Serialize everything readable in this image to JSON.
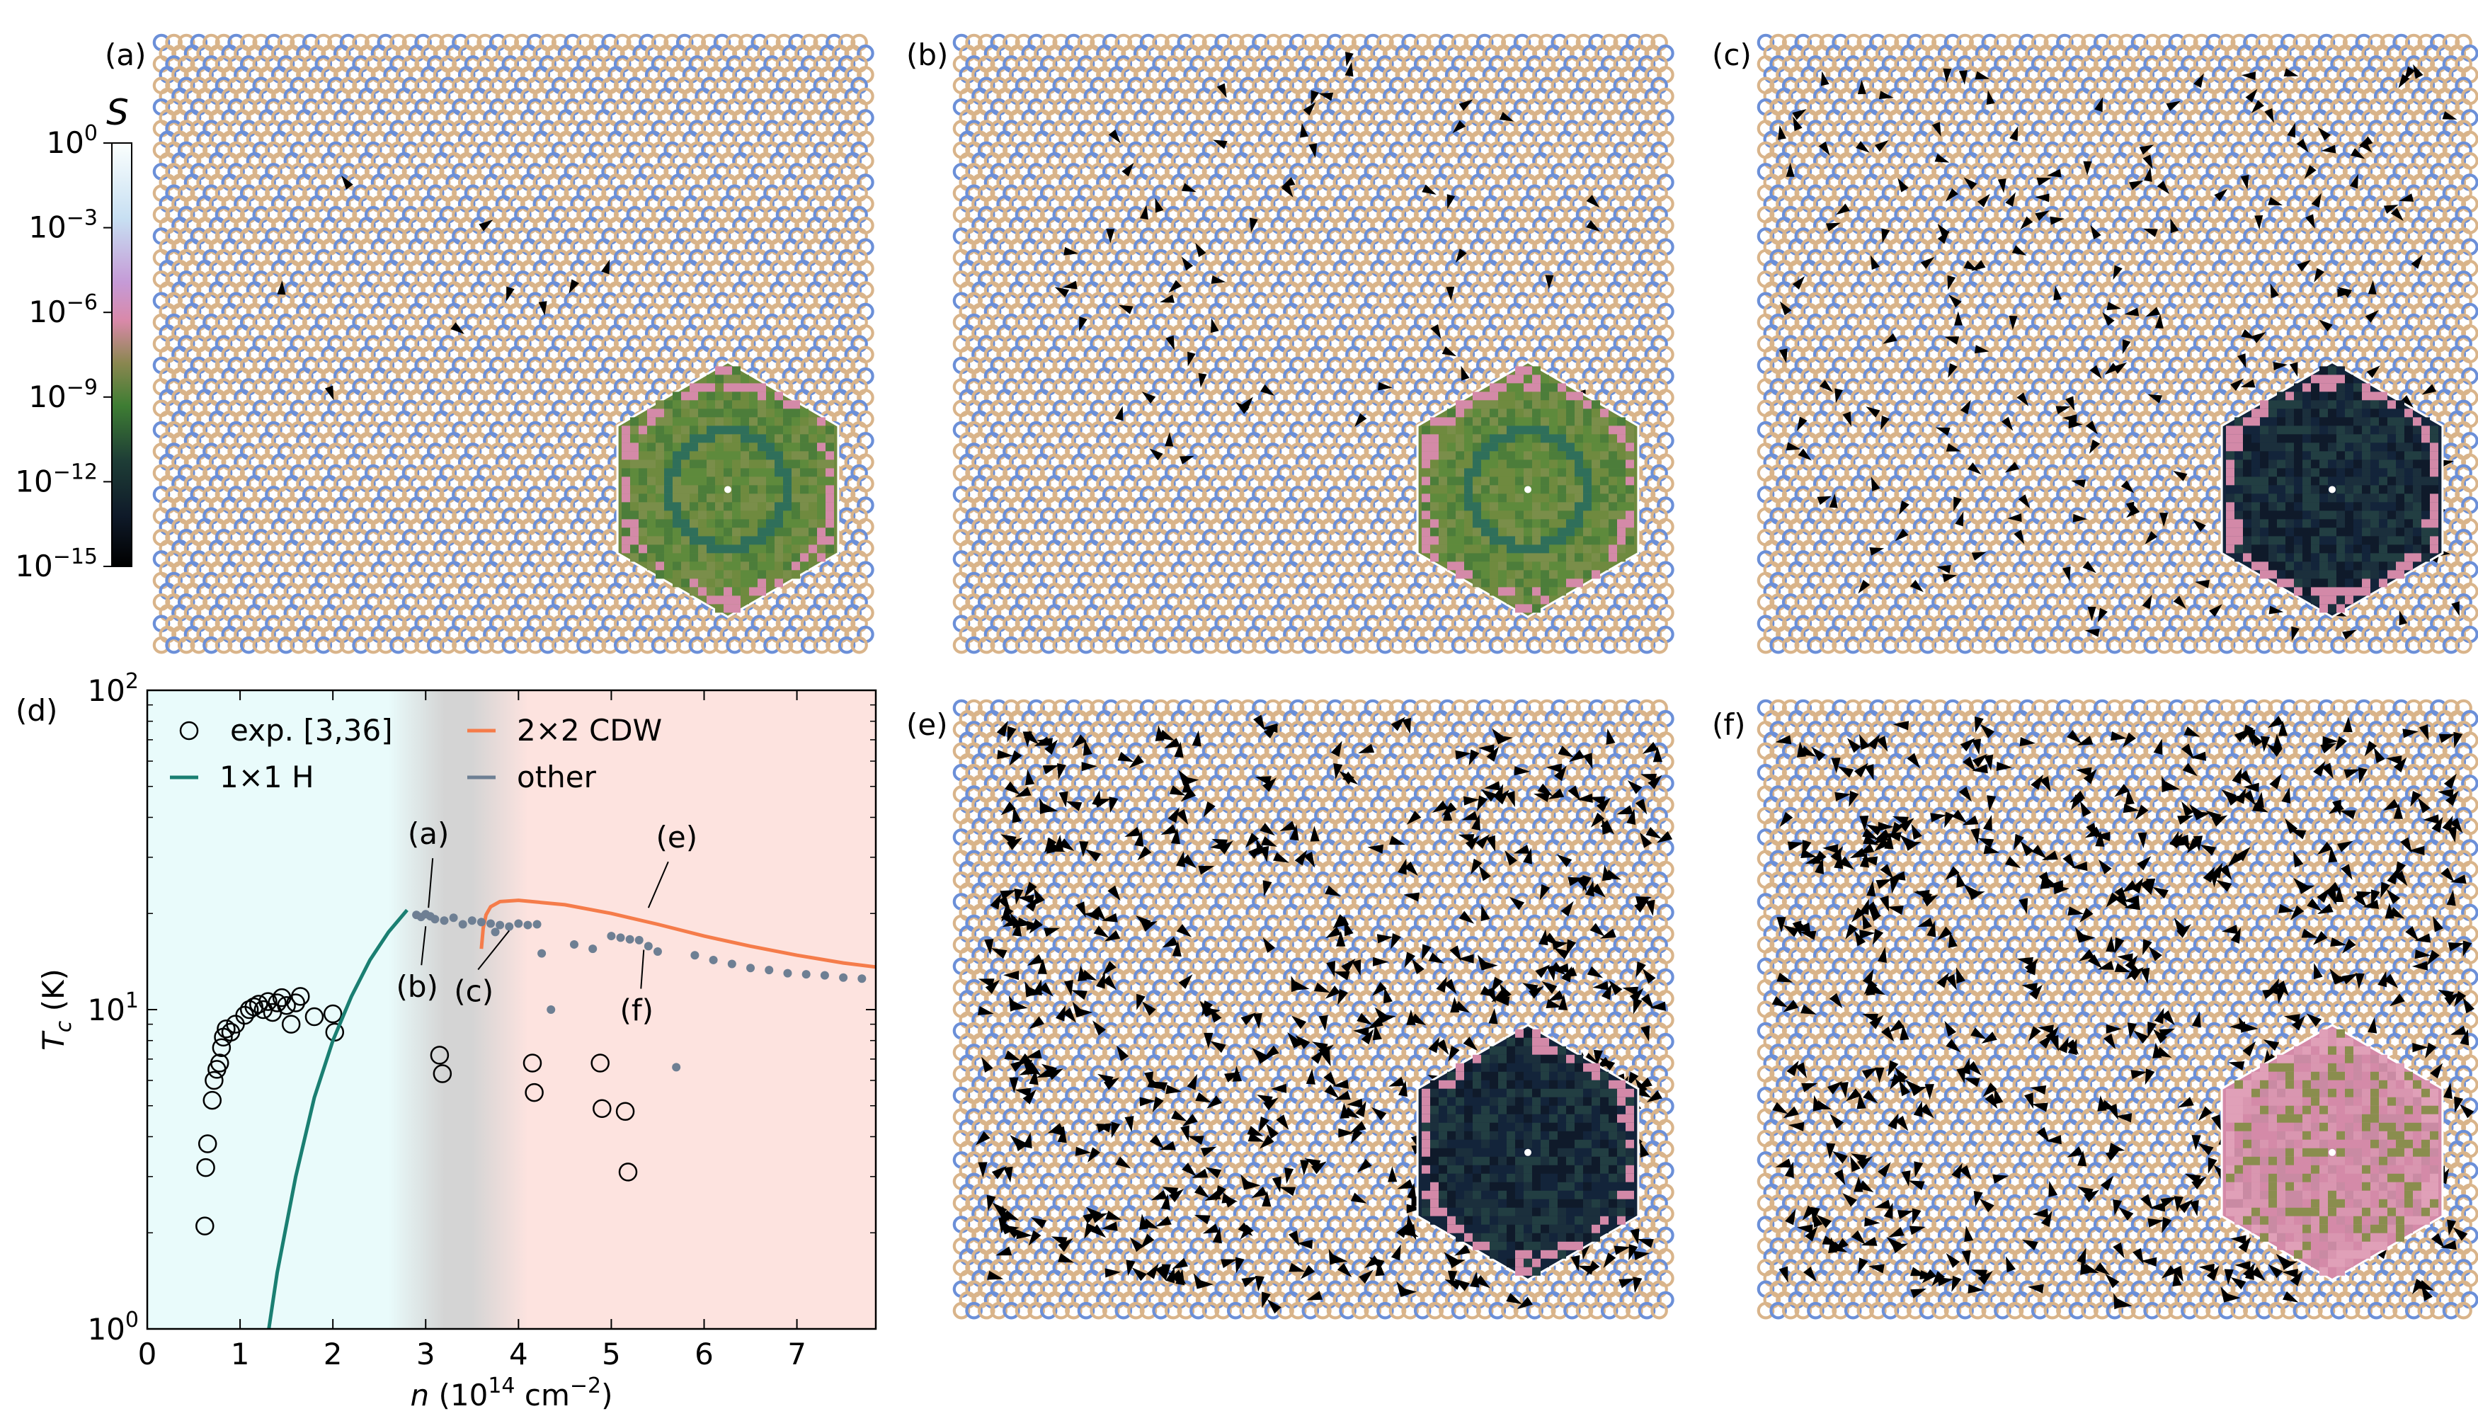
{
  "panel_labels": [
    "(a)",
    "(b)",
    "(c)",
    "(d)",
    "(e)",
    "(f)"
  ],
  "colorbar": {
    "label": "S",
    "ticks": [
      "10^0",
      "10^-3",
      "10^-6",
      "10^-9",
      "10^-12",
      "10^-15"
    ],
    "colors": [
      "#fbfffe",
      "#c7dff2",
      "#c59ad6",
      "#d989a9",
      "#8a8750",
      "#3e7d33",
      "#1e3d36",
      "#0f1a29",
      "#000000"
    ]
  },
  "lattice": {
    "colors": {
      "blue_site": "#6b8fd8",
      "tan_site": "#d9b48a",
      "arrow": "#000000"
    },
    "panels": [
      {
        "label": "(a)",
        "inset_palette": "green",
        "disorder": "sparse-centered"
      },
      {
        "label": "(b)",
        "inset_palette": "green",
        "disorder": "ring"
      },
      {
        "label": "(c)",
        "inset_palette": "dark",
        "disorder": "spread"
      },
      {
        "label": "(e)",
        "inset_palette": "dark",
        "disorder": "dense-regular"
      },
      {
        "label": "(f)",
        "inset_palette": "pink",
        "disorder": "dense-irregular"
      }
    ]
  },
  "chart_data": {
    "type": "line",
    "title": "",
    "xlabel": "n (10^14 cm^-2)",
    "ylabel": "T_c (K)",
    "xlim": [
      0,
      7.85
    ],
    "ylim": [
      1,
      100
    ],
    "yscale": "log",
    "xticks": [
      "0",
      "1",
      "2",
      "3",
      "4",
      "5",
      "6",
      "7"
    ],
    "yticks": [
      "10^0",
      "10^1",
      "10^2"
    ],
    "regions": [
      {
        "x": [
          0,
          2.9
        ],
        "color": "#e9fbfb"
      },
      {
        "x": [
          2.9,
          3.8
        ],
        "color": "#d4d4d4"
      },
      {
        "x": [
          3.8,
          7.85
        ],
        "color": "#fde3df"
      }
    ],
    "legend": [
      "exp. [3,36]",
      "1×1 H",
      "2×2 CDW",
      "other"
    ],
    "series": [
      {
        "name": "exp. [3,36]",
        "style": "open-circle",
        "color": "#000000",
        "x": [
          0.62,
          0.63,
          0.65,
          0.7,
          0.72,
          0.75,
          0.78,
          0.8,
          0.82,
          0.85,
          0.9,
          0.95,
          1.05,
          1.1,
          1.15,
          1.2,
          1.25,
          1.3,
          1.35,
          1.4,
          1.45,
          1.5,
          1.55,
          1.6,
          1.65,
          1.8,
          2.0,
          2.02,
          3.15,
          3.18,
          4.15,
          4.17,
          4.88,
          4.9,
          5.15,
          5.18
        ],
        "y": [
          2.1,
          3.2,
          3.8,
          5.2,
          6.0,
          6.5,
          6.8,
          7.6,
          8.2,
          8.7,
          8.5,
          9.0,
          9.6,
          10.0,
          10.2,
          10.4,
          10.0,
          10.6,
          9.8,
          10.5,
          10.9,
          10.3,
          9.0,
          10.5,
          11.0,
          9.5,
          9.7,
          8.5,
          7.2,
          6.3,
          6.8,
          5.5,
          6.8,
          4.9,
          4.8,
          3.1
        ]
      },
      {
        "name": "1×1 H",
        "style": "line",
        "color": "#1a7f72",
        "x": [
          1.31,
          1.4,
          1.6,
          1.8,
          2.0,
          2.2,
          2.4,
          2.6,
          2.8
        ],
        "y": [
          1.0,
          1.5,
          3.0,
          5.3,
          8.0,
          11.0,
          14.3,
          17.5,
          20.5
        ]
      },
      {
        "name": "2×2 CDW",
        "style": "line",
        "color": "#f57c4a",
        "x": [
          3.6,
          3.62,
          3.65,
          3.7,
          3.8,
          4.0,
          4.5,
          5.0,
          5.5,
          6.0,
          6.5,
          7.0,
          7.5,
          7.85
        ],
        "y": [
          15.5,
          18.0,
          19.8,
          21.0,
          21.8,
          22.0,
          21.3,
          20.0,
          18.5,
          17.0,
          15.8,
          14.8,
          14.0,
          13.6
        ]
      },
      {
        "name": "other",
        "style": "dot",
        "color": "#6e7f93",
        "x": [
          2.9,
          2.95,
          3.0,
          3.05,
          3.1,
          3.2,
          3.3,
          3.4,
          3.5,
          3.6,
          3.7,
          3.75,
          3.8,
          3.9,
          4.0,
          4.1,
          4.2,
          4.25,
          4.35,
          4.6,
          4.8,
          5.0,
          5.1,
          5.2,
          5.3,
          5.4,
          5.5,
          5.7,
          5.9,
          6.1,
          6.3,
          6.5,
          6.7,
          6.9,
          7.1,
          7.3,
          7.5,
          7.7
        ],
        "y": [
          19.8,
          19.5,
          19.9,
          19.6,
          19.2,
          19.0,
          19.4,
          18.5,
          19.0,
          18.8,
          18.6,
          17.5,
          18.4,
          18.2,
          18.6,
          18.4,
          18.5,
          15.0,
          10.0,
          16.0,
          15.5,
          17.0,
          16.8,
          16.6,
          16.5,
          15.8,
          15.2,
          6.6,
          14.8,
          14.3,
          13.9,
          13.5,
          13.3,
          13.0,
          12.9,
          12.8,
          12.6,
          12.5
        ]
      }
    ],
    "annotations": [
      {
        "text": "(a)",
        "x": 3.03,
        "y": 19.8
      },
      {
        "text": "(b)",
        "x": 3.0,
        "y": 19.2
      },
      {
        "text": "(c)",
        "x": 3.9,
        "y": 18.6
      },
      {
        "text": "(e)",
        "x": 5.4,
        "y": 19.8
      },
      {
        "text": "(f)",
        "x": 5.35,
        "y": 16.2
      }
    ]
  }
}
